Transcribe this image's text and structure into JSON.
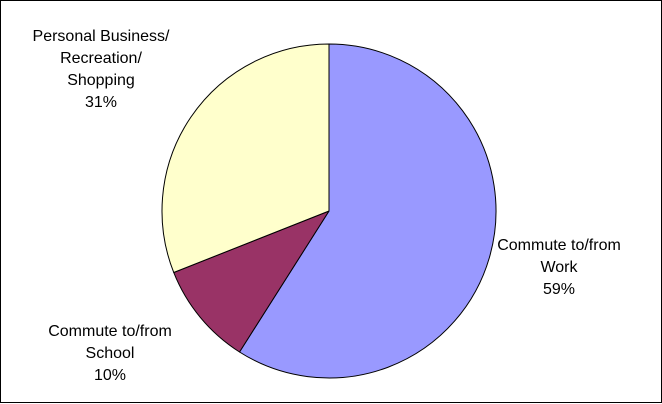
{
  "chart_data": {
    "type": "pie",
    "title": "",
    "slices": [
      {
        "label_lines": [
          "Commute to/from",
          "Work"
        ],
        "percent_label": "59%",
        "value": 59,
        "color": "#9999ff"
      },
      {
        "label_lines": [
          "Commute to/from",
          "School"
        ],
        "percent_label": "10%",
        "value": 10,
        "color": "#993366"
      },
      {
        "label_lines": [
          "Personal Business/",
          "Recreation/",
          "Shopping"
        ],
        "percent_label": "31%",
        "value": 31,
        "color": "#ffffcc"
      }
    ],
    "start_angle_deg": 0,
    "direction": "clockwise",
    "outline_color": "#000000",
    "legend": "none"
  }
}
